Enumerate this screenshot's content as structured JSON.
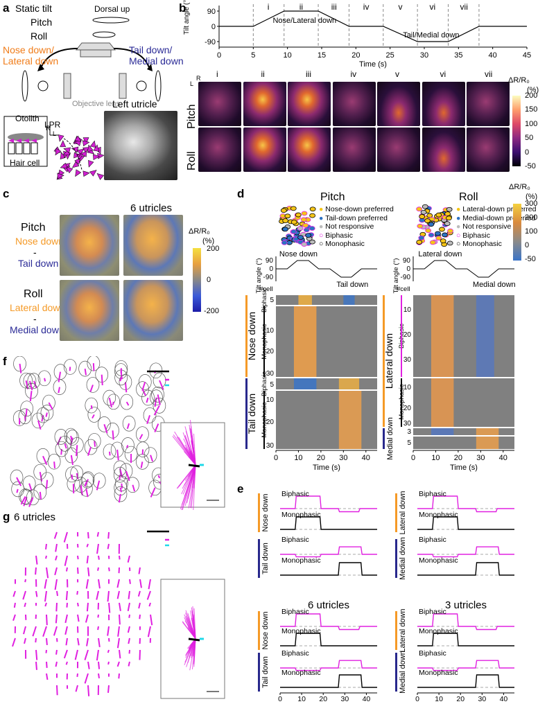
{
  "panels": {
    "a": "a",
    "b": "b",
    "c": "c",
    "d": "d",
    "e": "e",
    "f": "f",
    "g": "g"
  },
  "a": {
    "static_tilt": "Static tilt",
    "dorsal_up": "Dorsal up",
    "pitch": "Pitch",
    "roll": "Roll",
    "nose_down": "Nose down/",
    "lateral_down": "Lateral down",
    "tail_down": "Tail down/",
    "medial_down": "Medial down",
    "objective": "Objective lens",
    "otolith": "Otolith",
    "hair_cell": "Hair cell",
    "lpr": "LPR",
    "left_utricle": "Left utricle",
    "axis_r": "R",
    "axis_l": "L"
  },
  "b": {
    "ylabel": "Tilt angle (°)",
    "xlabel": "Time (s)",
    "yticks": [
      "90",
      "0",
      "-90"
    ],
    "xticks": [
      "0",
      "5",
      "10",
      "15",
      "20",
      "25",
      "30",
      "35",
      "40",
      "45"
    ],
    "phases": [
      "i",
      "ii",
      "iii",
      "iv",
      "v",
      "vi",
      "vii"
    ],
    "nose_label": "Nose/Lateral down",
    "tail_label": "Tail/Medial down",
    "row_pitch": "Pitch",
    "row_roll": "Roll",
    "cbar_title": "ΔR/R₀",
    "cbar_unit": "(%)",
    "cbar_ticks": [
      "200",
      "150",
      "100",
      "50",
      "0",
      "-50"
    ]
  },
  "c": {
    "title": "6 utricles",
    "pitch": "Pitch",
    "nose_down": "Nose down",
    "minus": "-",
    "tail_down": "Tail down",
    "roll": "Roll",
    "lateral_down": "Lateral down",
    "medial_down": "Medial down",
    "cbar_title": "ΔR/R₀",
    "cbar_unit": "(%)",
    "cbar_ticks": [
      "200",
      "0",
      "-200"
    ]
  },
  "d": {
    "pitch_title": "Pitch",
    "roll_title": "Roll",
    "legend_pitch": [
      "Nose-down preferred",
      "Tail-down preferred",
      "Not responsive",
      "Biphasic",
      "Monophasic"
    ],
    "legend_roll": [
      "Lateral-down preferred",
      "Medial-down preferred",
      "Not responsive",
      "Biphasic",
      "Monophasic"
    ],
    "pitch_nose": "Nose down",
    "pitch_tail": "Tail down",
    "roll_lat": "Lateral down",
    "roll_med": "Medial down",
    "tilt_label": "Tilt angle (°)",
    "cell_label": "#cell",
    "tilt_ticks": [
      "90",
      "0",
      "-90"
    ],
    "xticks": [
      "0",
      "10",
      "20",
      "30",
      "40"
    ],
    "xlabel": "Time (s)",
    "group_nose": "Nose down",
    "group_tail": "Tail down",
    "group_lat": "Lateral down",
    "group_med": "Medial down",
    "biphasic": "Biphasic",
    "monophasic": "Monophasic",
    "pitch_nose_ticks": [
      "5",
      "10",
      "20",
      "30"
    ],
    "pitch_tail_ticks": [
      "5",
      "10",
      "20",
      "30"
    ],
    "roll_lat_ticks": [
      "10",
      "20",
      "30",
      "10",
      "20",
      "30"
    ],
    "roll_med_ticks": [
      "3",
      "5"
    ],
    "cbar_title": "ΔR/R₀",
    "cbar_unit": "(%)",
    "cbar_ticks": [
      "300",
      "200",
      "100",
      "0",
      "-50"
    ]
  },
  "e": {
    "nose_down": "Nose down",
    "tail_down": "Tail down",
    "lat_down": "Lateral down",
    "med_down": "Medial down",
    "biphasic": "Biphasic",
    "monophasic": "Monophasic",
    "six": "6 utricles",
    "three": "3 utricles",
    "xticks": [
      "0",
      "10",
      "20",
      "30",
      "40"
    ],
    "xlabel": "Time (s)"
  },
  "g": {
    "title": "6 utricles"
  },
  "colors": {
    "magenta": "#e020e0",
    "cyan": "#20d8e8",
    "orange": "#f59a27",
    "blue": "#28288c",
    "yellow": "#f5c518",
    "steel": "#2d72c2"
  }
}
